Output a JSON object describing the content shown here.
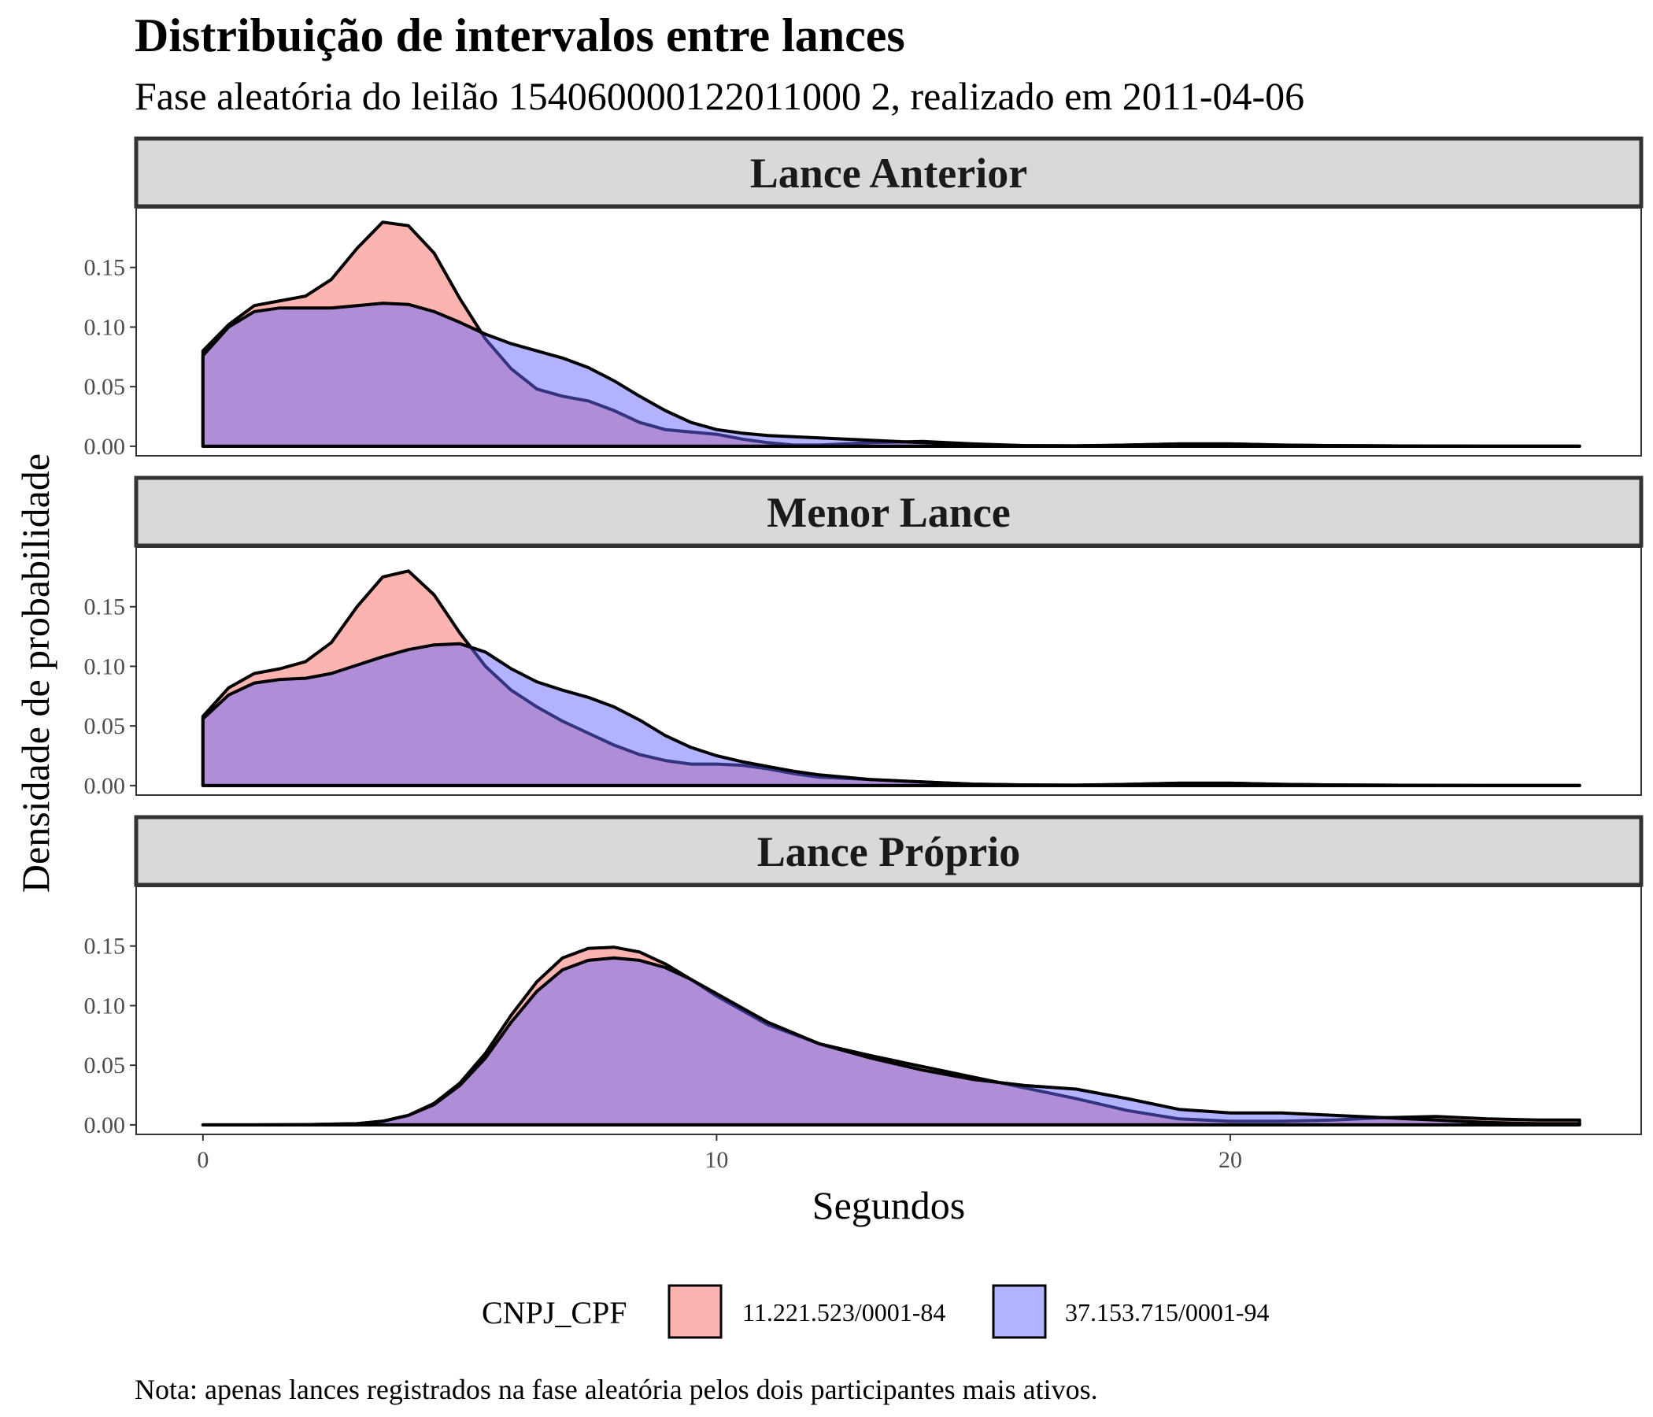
{
  "chart_data": {
    "type": "area",
    "title": "Distribuição de intervalos entre lances",
    "subtitle": "Fase aleatória do leilão 154060000122011000 2, realizado em 2011-04-06",
    "xlabel": "Segundos",
    "ylabel": "Densidade de probabilidade",
    "caption": "Nota: apenas lances registrados na fase aleatória pelos dois participantes mais ativos.",
    "xlim": [
      -1.3,
      28
    ],
    "ylim": [
      -0.008,
      0.2
    ],
    "x_ticks": [
      0,
      10,
      20
    ],
    "y_ticks": [
      0.0,
      0.05,
      0.1,
      0.15
    ],
    "y_tick_labels": [
      "0.00",
      "0.05",
      "0.10",
      "0.15"
    ],
    "grid": false,
    "legend": {
      "title": "CNPJ_CPF",
      "position": "bottom",
      "entries": [
        "11.221.523/0001-84",
        "37.153.715/0001-94"
      ]
    },
    "series_colors": [
      "#F8766D",
      "#6666FF"
    ],
    "panels": [
      {
        "strip": "Lance Anterior",
        "series": [
          {
            "name": "11.221.523/0001-84",
            "x": [
              0,
              0.5,
              1,
              1.5,
              2,
              2.5,
              3,
              3.5,
              4,
              4.5,
              5,
              5.5,
              6,
              6.5,
              7,
              7.5,
              8,
              8.5,
              9,
              9.5,
              10,
              10.5,
              11,
              11.5,
              12,
              12.5,
              13,
              14,
              15,
              16,
              17,
              18,
              19,
              20,
              21,
              22,
              23,
              24,
              25,
              26,
              26.8
            ],
            "values": [
              0.08,
              0.102,
              0.118,
              0.122,
              0.126,
              0.14,
              0.166,
              0.188,
              0.185,
              0.162,
              0.124,
              0.09,
              0.065,
              0.048,
              0.042,
              0.038,
              0.03,
              0.02,
              0.014,
              0.012,
              0.01,
              0.006,
              0.003,
              0.001,
              0.001,
              0.002,
              0.003,
              0.004,
              0.002,
              0.0005,
              0.0003,
              0.001,
              0.002,
              0.002,
              0.001,
              0.0005,
              0.0003,
              0.0002,
              0.0001,
              0.0001,
              0.0001
            ]
          },
          {
            "name": "37.153.715/0001-94",
            "x": [
              0,
              0.5,
              1,
              1.5,
              2,
              2.5,
              3,
              3.5,
              4,
              4.5,
              5,
              5.5,
              6,
              6.5,
              7,
              7.5,
              8,
              8.5,
              9,
              9.5,
              10,
              10.5,
              11,
              11.5,
              12,
              12.5,
              13,
              14,
              15,
              16,
              17,
              18,
              19,
              20,
              21,
              22,
              23,
              24,
              25,
              26,
              26.8
            ],
            "values": [
              0.076,
              0.1,
              0.113,
              0.116,
              0.116,
              0.116,
              0.118,
              0.12,
              0.119,
              0.113,
              0.104,
              0.094,
              0.086,
              0.08,
              0.074,
              0.066,
              0.055,
              0.042,
              0.03,
              0.02,
              0.014,
              0.011,
              0.009,
              0.008,
              0.007,
              0.006,
              0.005,
              0.003,
              0.0015,
              0.0005,
              0.0003,
              0.001,
              0.002,
              0.002,
              0.001,
              0.0005,
              0.0003,
              0.0002,
              0.0001,
              0.0001,
              0.0001
            ]
          }
        ]
      },
      {
        "strip": "Menor Lance",
        "series": [
          {
            "name": "11.221.523/0001-84",
            "x": [
              0,
              0.5,
              1,
              1.5,
              2,
              2.5,
              3,
              3.5,
              4,
              4.5,
              5,
              5.5,
              6,
              6.5,
              7,
              7.5,
              8,
              8.5,
              9,
              9.5,
              10,
              10.5,
              11,
              11.5,
              12,
              12.5,
              13,
              14,
              15,
              16,
              17,
              18,
              19,
              20,
              21,
              22,
              23,
              24,
              25,
              26,
              26.8
            ],
            "values": [
              0.058,
              0.082,
              0.094,
              0.098,
              0.104,
              0.12,
              0.15,
              0.175,
              0.18,
              0.16,
              0.128,
              0.1,
              0.08,
              0.066,
              0.054,
              0.044,
              0.034,
              0.026,
              0.021,
              0.018,
              0.018,
              0.017,
              0.014,
              0.01,
              0.007,
              0.006,
              0.005,
              0.003,
              0.0012,
              0.0005,
              0.0003,
              0.001,
              0.002,
              0.002,
              0.001,
              0.0005,
              0.0003,
              0.0002,
              0.0001,
              0.0001,
              0.0001
            ]
          },
          {
            "name": "37.153.715/0001-94",
            "x": [
              0,
              0.5,
              1,
              1.5,
              2,
              2.5,
              3,
              3.5,
              4,
              4.5,
              5,
              5.5,
              6,
              6.5,
              7,
              7.5,
              8,
              8.5,
              9,
              9.5,
              10,
              10.5,
              11,
              11.5,
              12,
              12.5,
              13,
              14,
              15,
              16,
              17,
              18,
              19,
              20,
              21,
              22,
              23,
              24,
              25,
              26,
              26.8
            ],
            "values": [
              0.056,
              0.076,
              0.086,
              0.089,
              0.09,
              0.094,
              0.101,
              0.108,
              0.114,
              0.118,
              0.119,
              0.112,
              0.098,
              0.087,
              0.08,
              0.074,
              0.066,
              0.055,
              0.042,
              0.032,
              0.025,
              0.02,
              0.016,
              0.012,
              0.009,
              0.007,
              0.005,
              0.003,
              0.0012,
              0.0005,
              0.0003,
              0.001,
              0.002,
              0.002,
              0.001,
              0.0005,
              0.0003,
              0.0002,
              0.0001,
              0.0001,
              0.0001
            ]
          }
        ]
      },
      {
        "strip": "Lance Próprio",
        "series": [
          {
            "name": "11.221.523/0001-84",
            "x": [
              0,
              1,
              2,
              3,
              3.5,
              4,
              4.5,
              5,
              5.5,
              6,
              6.5,
              7,
              7.5,
              8,
              8.5,
              9,
              9.5,
              10,
              11,
              12,
              13,
              14,
              15,
              16,
              17,
              18,
              19,
              20,
              21,
              22,
              23,
              24,
              25,
              26,
              26.8
            ],
            "values": [
              0,
              0,
              0.0002,
              0.001,
              0.003,
              0.008,
              0.018,
              0.035,
              0.06,
              0.092,
              0.12,
              0.14,
              0.148,
              0.149,
              0.145,
              0.135,
              0.122,
              0.108,
              0.084,
              0.068,
              0.058,
              0.049,
              0.04,
              0.031,
              0.022,
              0.012,
              0.005,
              0.003,
              0.003,
              0.004,
              0.006,
              0.007,
              0.005,
              0.004,
              0.004
            ]
          },
          {
            "name": "37.153.715/0001-94",
            "x": [
              0,
              1,
              2,
              3,
              3.5,
              4,
              4.5,
              5,
              5.5,
              6,
              6.5,
              7,
              7.5,
              8,
              8.5,
              9,
              9.5,
              10,
              11,
              12,
              13,
              14,
              15,
              16,
              17,
              18,
              19,
              20,
              21,
              22,
              23,
              24,
              25,
              26,
              26.8
            ],
            "values": [
              0,
              0,
              0.0002,
              0.001,
              0.003,
              0.008,
              0.017,
              0.033,
              0.056,
              0.086,
              0.112,
              0.13,
              0.138,
              0.14,
              0.138,
              0.132,
              0.122,
              0.11,
              0.086,
              0.068,
              0.056,
              0.046,
              0.038,
              0.033,
              0.03,
              0.022,
              0.013,
              0.01,
              0.01,
              0.008,
              0.006,
              0.004,
              0.002,
              0.001,
              0.001
            ]
          }
        ]
      }
    ]
  }
}
